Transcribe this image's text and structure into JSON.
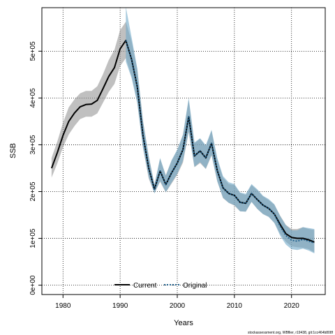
{
  "chart_data": {
    "type": "line",
    "title": "",
    "xlabel": "Years",
    "ylabel": "SSB",
    "xlim": [
      1976.3,
      2025.9
    ],
    "ylim": [
      -20000,
      593000
    ],
    "grid": true,
    "legend_position": "bottom-center",
    "x_ticks": [
      1980,
      1990,
      2000,
      2010,
      2020
    ],
    "x_tick_labels": [
      "1980",
      "1990",
      "2000",
      "2010",
      "2020"
    ],
    "y_ticks": [
      0,
      100000,
      200000,
      300000,
      400000,
      500000
    ],
    "y_tick_labels": [
      "0e+00",
      "1e+05",
      "2e+05",
      "3e+05",
      "4e+05",
      "5e+05"
    ],
    "series": [
      {
        "name": "Current",
        "color": "#000000",
        "band_color": "#8c8c8c",
        "x": [
          1978,
          1979,
          1980,
          1981,
          1982,
          1983,
          1984,
          1985,
          1986,
          1987,
          1988,
          1989,
          1990,
          1991,
          1992,
          1993,
          1994,
          1995,
          1996,
          1997,
          1998,
          1999,
          2000,
          2001,
          2002,
          2003,
          2004,
          2005,
          2006,
          2007,
          2008,
          2009,
          2010,
          2011,
          2012,
          2013,
          2014,
          2015,
          2016,
          2017,
          2018,
          2019,
          2020,
          2021,
          2022,
          2023,
          2024
        ],
        "values": [
          250000,
          283000,
          320000,
          350000,
          368000,
          381000,
          386000,
          387000,
          395000,
          420000,
          446000,
          465000,
          505000,
          523000,
          483000,
          424000,
          320000,
          250000,
          205000,
          244000,
          215000,
          240000,
          261000,
          290000,
          360000,
          276000,
          287000,
          272000,
          303000,
          245000,
          208000,
          196000,
          192000,
          177000,
          175000,
          196000,
          183000,
          171000,
          164000,
          152000,
          130000,
          110000,
          102000,
          100000,
          100000,
          97000,
          92000
        ],
        "lower": [
          230000,
          260000,
          295000,
          322000,
          340000,
          355000,
          360000,
          360000,
          367000,
          390000,
          413000,
          430000,
          468000,
          485000,
          447000,
          390000,
          293000,
          228000,
          197000,
          221000,
          198000,
          217000,
          236000,
          262000,
          327000,
          252000,
          261000,
          248000,
          277000,
          222000,
          186000,
          176000,
          170000,
          158000,
          157000,
          178000,
          163000,
          152000,
          146000,
          133000,
          110000,
          93000,
          83000,
          81000,
          80000,
          77000,
          70000
        ],
        "upper": [
          272000,
          307000,
          347000,
          380000,
          397000,
          410000,
          415000,
          415000,
          425000,
          451000,
          481000,
          503000,
          545000,
          563000,
          522000,
          462000,
          351000,
          276000,
          215000,
          270000,
          235000,
          266000,
          288000,
          322000,
          396000,
          303000,
          313000,
          297000,
          330000,
          269000,
          230000,
          216000,
          214000,
          197000,
          193000,
          214000,
          203000,
          190000,
          182000,
          172000,
          149000,
          129000,
          120000,
          120000,
          124000,
          120000,
          118000
        ]
      },
      {
        "name": "Original",
        "color": "#1e5f8c",
        "band_color": "#6fa9c8",
        "x": [
          1991,
          1992,
          1993,
          1994,
          1995,
          1996,
          1997,
          1998,
          1999,
          2000,
          2001,
          2002,
          2003,
          2004,
          2005,
          2006,
          2007,
          2008,
          2009,
          2010,
          2011,
          2012,
          2013,
          2014,
          2015,
          2016,
          2017,
          2018,
          2019,
          2020,
          2021,
          2022,
          2023,
          2024
        ],
        "values": [
          523000,
          483000,
          424000,
          320000,
          250000,
          205000,
          244000,
          215000,
          240000,
          261000,
          290000,
          360000,
          276000,
          287000,
          272000,
          303000,
          245000,
          208000,
          196000,
          192000,
          177000,
          175000,
          196000,
          183000,
          171000,
          164000,
          152000,
          126000,
          106000,
          96000,
          94000,
          98000,
          94000,
          90000
        ],
        "lower": [
          478000,
          443000,
          389000,
          294000,
          231000,
          196000,
          223000,
          199000,
          219000,
          238000,
          266000,
          329000,
          253000,
          263000,
          249000,
          279000,
          222000,
          187000,
          176000,
          171000,
          158000,
          157000,
          178000,
          163000,
          152000,
          146000,
          133000,
          106000,
          87000,
          77000,
          75000,
          78000,
          74000,
          68000
        ],
        "upper": [
          595000,
          530000,
          463000,
          350000,
          275000,
          215000,
          272000,
          234000,
          267000,
          290000,
          322000,
          400000,
          305000,
          314000,
          299000,
          332000,
          272000,
          233000,
          220000,
          216000,
          198000,
          195000,
          216000,
          205000,
          191000,
          184000,
          173000,
          148000,
          128000,
          117000,
          117000,
          124000,
          122000,
          120000
        ]
      }
    ]
  },
  "footer_note": "stockassessment.org, WBflier, r19438, git:1cc464b808f"
}
